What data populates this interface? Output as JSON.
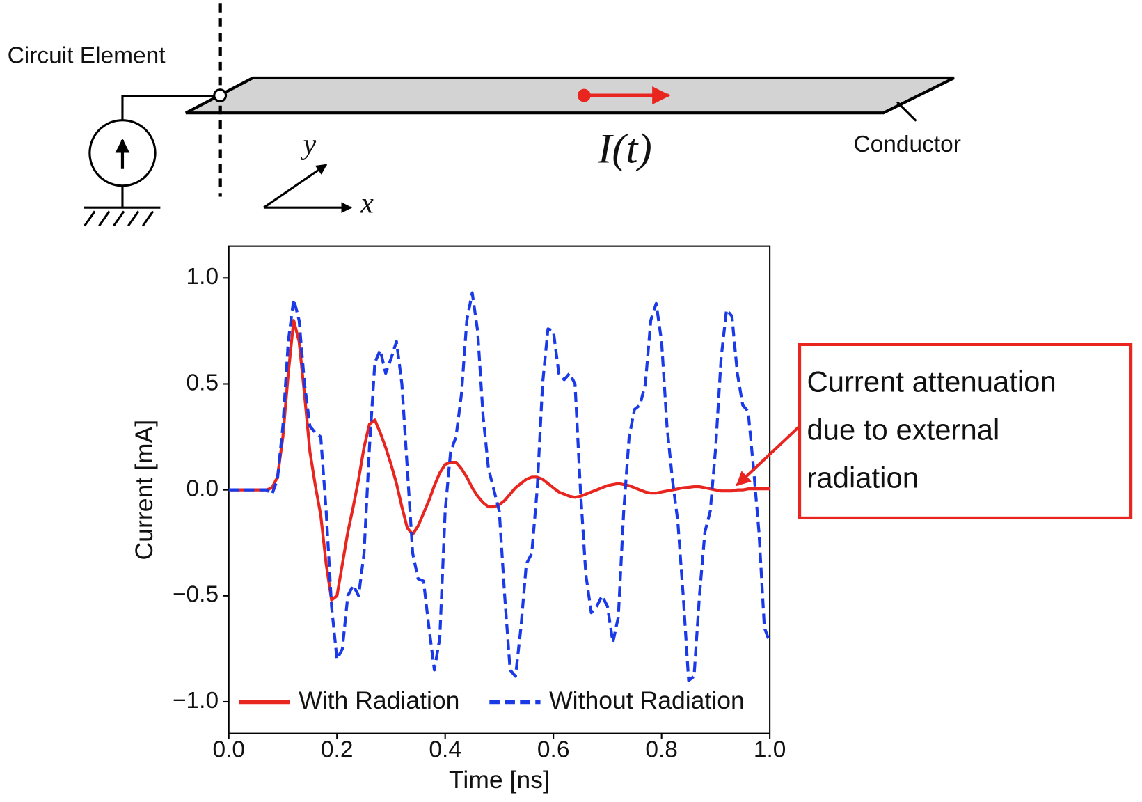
{
  "diagram": {
    "element_label": "Circuit Element",
    "conductor_label": "Conductor",
    "current_label": "I(t)",
    "y_label": "y",
    "x_label": "x"
  },
  "chart_data": {
    "type": "line",
    "x_label": "Time [ns]",
    "y_label": "Current [mA]",
    "xlim": [
      0,
      1
    ],
    "ylim": [
      -1.15,
      1.15
    ],
    "xticks": [
      {
        "value": 0,
        "label": "0.0"
      },
      0.2,
      0.4,
      0.6,
      0.8,
      {
        "value": 1,
        "label": "1.0"
      }
    ],
    "yticks": [
      {
        "value": -1,
        "label": "−1.0"
      },
      {
        "value": -0.5,
        "label": "−0.5"
      },
      {
        "value": 0,
        "label": "0.0"
      },
      0.5,
      {
        "value": 1,
        "label": "1.0"
      }
    ],
    "legend": "lower left",
    "annotation": [
      "Current attenuation",
      "due to external",
      "radiation"
    ],
    "x": [
      0,
      0.01,
      0.02,
      0.03,
      0.04,
      0.05,
      0.06,
      0.07,
      0.08,
      0.09,
      0.1,
      0.11,
      0.12,
      0.13,
      0.14,
      0.15,
      0.16,
      0.17,
      0.18,
      0.19,
      0.2,
      0.21,
      0.22,
      0.23,
      0.24,
      0.25,
      0.26,
      0.27,
      0.28,
      0.29,
      0.3,
      0.31,
      0.32,
      0.33,
      0.34,
      0.35,
      0.36,
      0.37,
      0.38,
      0.39,
      0.4,
      0.41,
      0.42,
      0.43,
      0.44,
      0.45,
      0.46,
      0.47,
      0.48,
      0.49,
      0.5,
      0.51,
      0.52,
      0.53,
      0.54,
      0.55,
      0.56,
      0.57,
      0.58,
      0.59,
      0.6,
      0.61,
      0.62,
      0.63,
      0.64,
      0.65,
      0.66,
      0.67,
      0.68,
      0.69,
      0.7,
      0.71,
      0.72,
      0.73,
      0.74,
      0.75,
      0.76,
      0.77,
      0.78,
      0.79,
      0.8,
      0.81,
      0.82,
      0.83,
      0.84,
      0.85,
      0.86,
      0.87,
      0.88,
      0.89,
      0.9,
      0.91,
      0.92,
      0.93,
      0.94,
      0.95,
      0.96,
      0.97,
      0.98,
      0.99,
      1
    ],
    "series": [
      {
        "name": "With Radiation",
        "color": "#e8251f",
        "linestyle": "solid",
        "values": [
          0,
          0,
          0,
          0,
          0,
          0,
          0,
          0,
          0.01,
          0.06,
          0.25,
          0.55,
          0.8,
          0.7,
          0.45,
          0.18,
          0.02,
          -0.12,
          -0.35,
          -0.52,
          -0.5,
          -0.35,
          -0.2,
          -0.08,
          0.05,
          0.2,
          0.31,
          0.33,
          0.27,
          0.2,
          0.12,
          0.03,
          -0.08,
          -0.18,
          -0.21,
          -0.17,
          -0.11,
          -0.05,
          0.02,
          0.08,
          0.12,
          0.13,
          0.13,
          0.1,
          0.06,
          0.01,
          -0.03,
          -0.06,
          -0.08,
          -0.08,
          -0.07,
          -0.05,
          -0.02,
          0.01,
          0.03,
          0.05,
          0.06,
          0.06,
          0.05,
          0.03,
          0.01,
          -0.01,
          -0.02,
          -0.03,
          -0.035,
          -0.03,
          -0.02,
          -0.01,
          0,
          0.01,
          0.02,
          0.025,
          0.03,
          0.025,
          0.02,
          0.01,
          0,
          -0.01,
          -0.015,
          -0.015,
          -0.01,
          -0.005,
          0,
          0.005,
          0.01,
          0.012,
          0.015,
          0.015,
          0.01,
          0.005,
          0,
          -0.005,
          -0.005,
          -0.005,
          0,
          0,
          0.005,
          0.005,
          0.005,
          0.005,
          0.005
        ]
      },
      {
        "name": "Without Radiation",
        "color": "#1a3ae8",
        "linestyle": "dashed",
        "values": [
          0,
          0,
          0,
          0,
          0,
          0,
          0,
          0,
          -0.02,
          0.05,
          0.3,
          0.7,
          0.9,
          0.8,
          0.5,
          0.3,
          0.27,
          0.25,
          -0.1,
          -0.55,
          -0.8,
          -0.75,
          -0.5,
          -0.45,
          -0.5,
          -0.3,
          0.2,
          0.6,
          0.66,
          0.55,
          0.62,
          0.7,
          0.5,
          0.1,
          -0.3,
          -0.42,
          -0.43,
          -0.65,
          -0.85,
          -0.7,
          -0.1,
          0.18,
          0.25,
          0.45,
          0.8,
          0.93,
          0.75,
          0.35,
          0.1,
          0,
          -0.1,
          -0.5,
          -0.85,
          -0.88,
          -0.65,
          -0.35,
          -0.3,
          0,
          0.5,
          0.76,
          0.75,
          0.55,
          0.52,
          0.55,
          0.5,
          0,
          -0.4,
          -0.58,
          -0.55,
          -0.5,
          -0.55,
          -0.72,
          -0.6,
          -0.1,
          0.25,
          0.38,
          0.4,
          0.5,
          0.8,
          0.88,
          0.7,
          0.3,
          0.05,
          -0.15,
          -0.5,
          -0.9,
          -0.88,
          -0.5,
          -0.2,
          -0.1,
          0.2,
          0.62,
          0.85,
          0.82,
          0.55,
          0.4,
          0.37,
          0.1,
          -0.2,
          -0.65,
          -0.72
        ]
      }
    ]
  }
}
